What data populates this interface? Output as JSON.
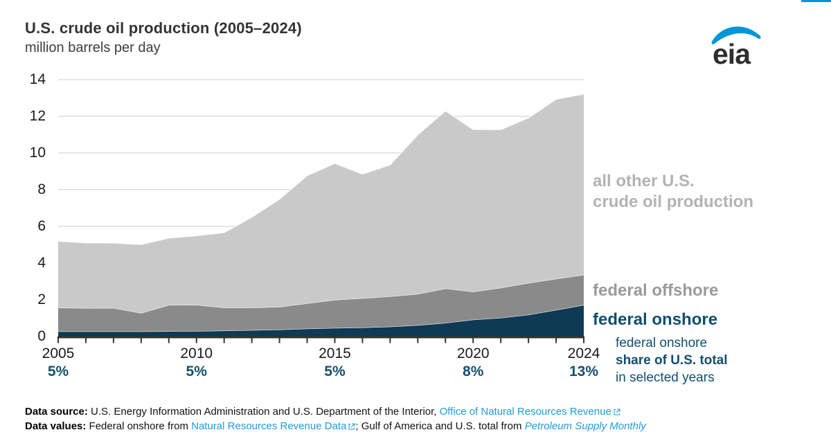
{
  "header": {
    "title": "U.S. crude oil production (2005–2024)",
    "subtitle": "million barrels per day",
    "logo_text": "eia"
  },
  "colors": {
    "accent_bar": "#0096d7",
    "logo_blue": "#0096d7",
    "logo_text": "#2e2e2e",
    "gridline": "#d9d9d9",
    "axis": "#333333",
    "navy_text": "#14506f",
    "link_blue": "#1f9bd9",
    "area_onshore": "#0e3a55",
    "area_offshore": "#8a8a8a",
    "area_other": "#c9c9c9"
  },
  "chart_data": {
    "type": "area",
    "stacked": true,
    "title": "U.S. crude oil production (2005–2024)",
    "ylabel": "million barrels per day",
    "ylim": [
      0,
      14
    ],
    "ytick_step": 2,
    "grid": "horizontal",
    "legend_position": "right",
    "x": [
      2005,
      2006,
      2007,
      2008,
      2009,
      2010,
      2011,
      2012,
      2013,
      2014,
      2015,
      2016,
      2017,
      2018,
      2019,
      2020,
      2021,
      2022,
      2023,
      2024
    ],
    "xtick_years": [
      2005,
      2010,
      2015,
      2020,
      2024
    ],
    "xtick_labels": [
      "2005",
      "2010",
      "2015",
      "2020",
      "2024"
    ],
    "series": [
      {
        "name": "federal onshore",
        "color": "#0e3a55",
        "values": [
          0.26,
          0.26,
          0.26,
          0.26,
          0.27,
          0.28,
          0.3,
          0.33,
          0.36,
          0.41,
          0.45,
          0.47,
          0.52,
          0.6,
          0.72,
          0.9,
          1.0,
          1.17,
          1.43,
          1.7
        ]
      },
      {
        "name": "federal offshore",
        "color": "#8a8a8a",
        "values": [
          1.3,
          1.27,
          1.28,
          1.0,
          1.43,
          1.43,
          1.26,
          1.23,
          1.24,
          1.38,
          1.53,
          1.6,
          1.65,
          1.7,
          1.88,
          1.52,
          1.64,
          1.73,
          1.7,
          1.65
        ]
      },
      {
        "name": "all other U.S. crude oil production",
        "color": "#c9c9c9",
        "values": [
          3.62,
          3.56,
          3.54,
          3.74,
          3.65,
          3.77,
          4.09,
          4.93,
          5.87,
          6.97,
          7.45,
          6.77,
          7.18,
          8.69,
          9.69,
          8.86,
          8.63,
          9.01,
          9.8,
          9.86
        ]
      }
    ],
    "totals": [
      5.18,
      5.09,
      5.08,
      5.0,
      5.35,
      5.48,
      5.65,
      6.49,
      7.47,
      8.76,
      9.43,
      8.84,
      9.35,
      10.99,
      12.29,
      11.28,
      11.27,
      11.91,
      12.93,
      13.21
    ],
    "share_annotations": [
      {
        "year": 2005,
        "label": "5%"
      },
      {
        "year": 2010,
        "label": "5%"
      },
      {
        "year": 2015,
        "label": "5%"
      },
      {
        "year": 2020,
        "label": "8%"
      },
      {
        "year": 2024,
        "label": "13%"
      }
    ]
  },
  "legend": {
    "other_line1": "all other U.S.",
    "other_line2": "crude oil production",
    "offshore": "federal offshore",
    "onshore": "federal onshore"
  },
  "share_note": {
    "line1": "federal onshore",
    "line2": "share of U.S. total",
    "line3": "in selected years"
  },
  "footer": {
    "line1_label": "Data source:",
    "line1_text": " U.S. Energy Information Administration and U.S. Department of the Interior, ",
    "line1_link": "Office of Natural Resources Revenue",
    "line2_label": "Data values:",
    "line2_text1": " Federal onshore from ",
    "line2_link1": "Natural Resources Revenue Data",
    "line2_text2": "; Gulf of America and U.S. total from ",
    "line2_link2": "Petroleum Supply Monthly"
  }
}
